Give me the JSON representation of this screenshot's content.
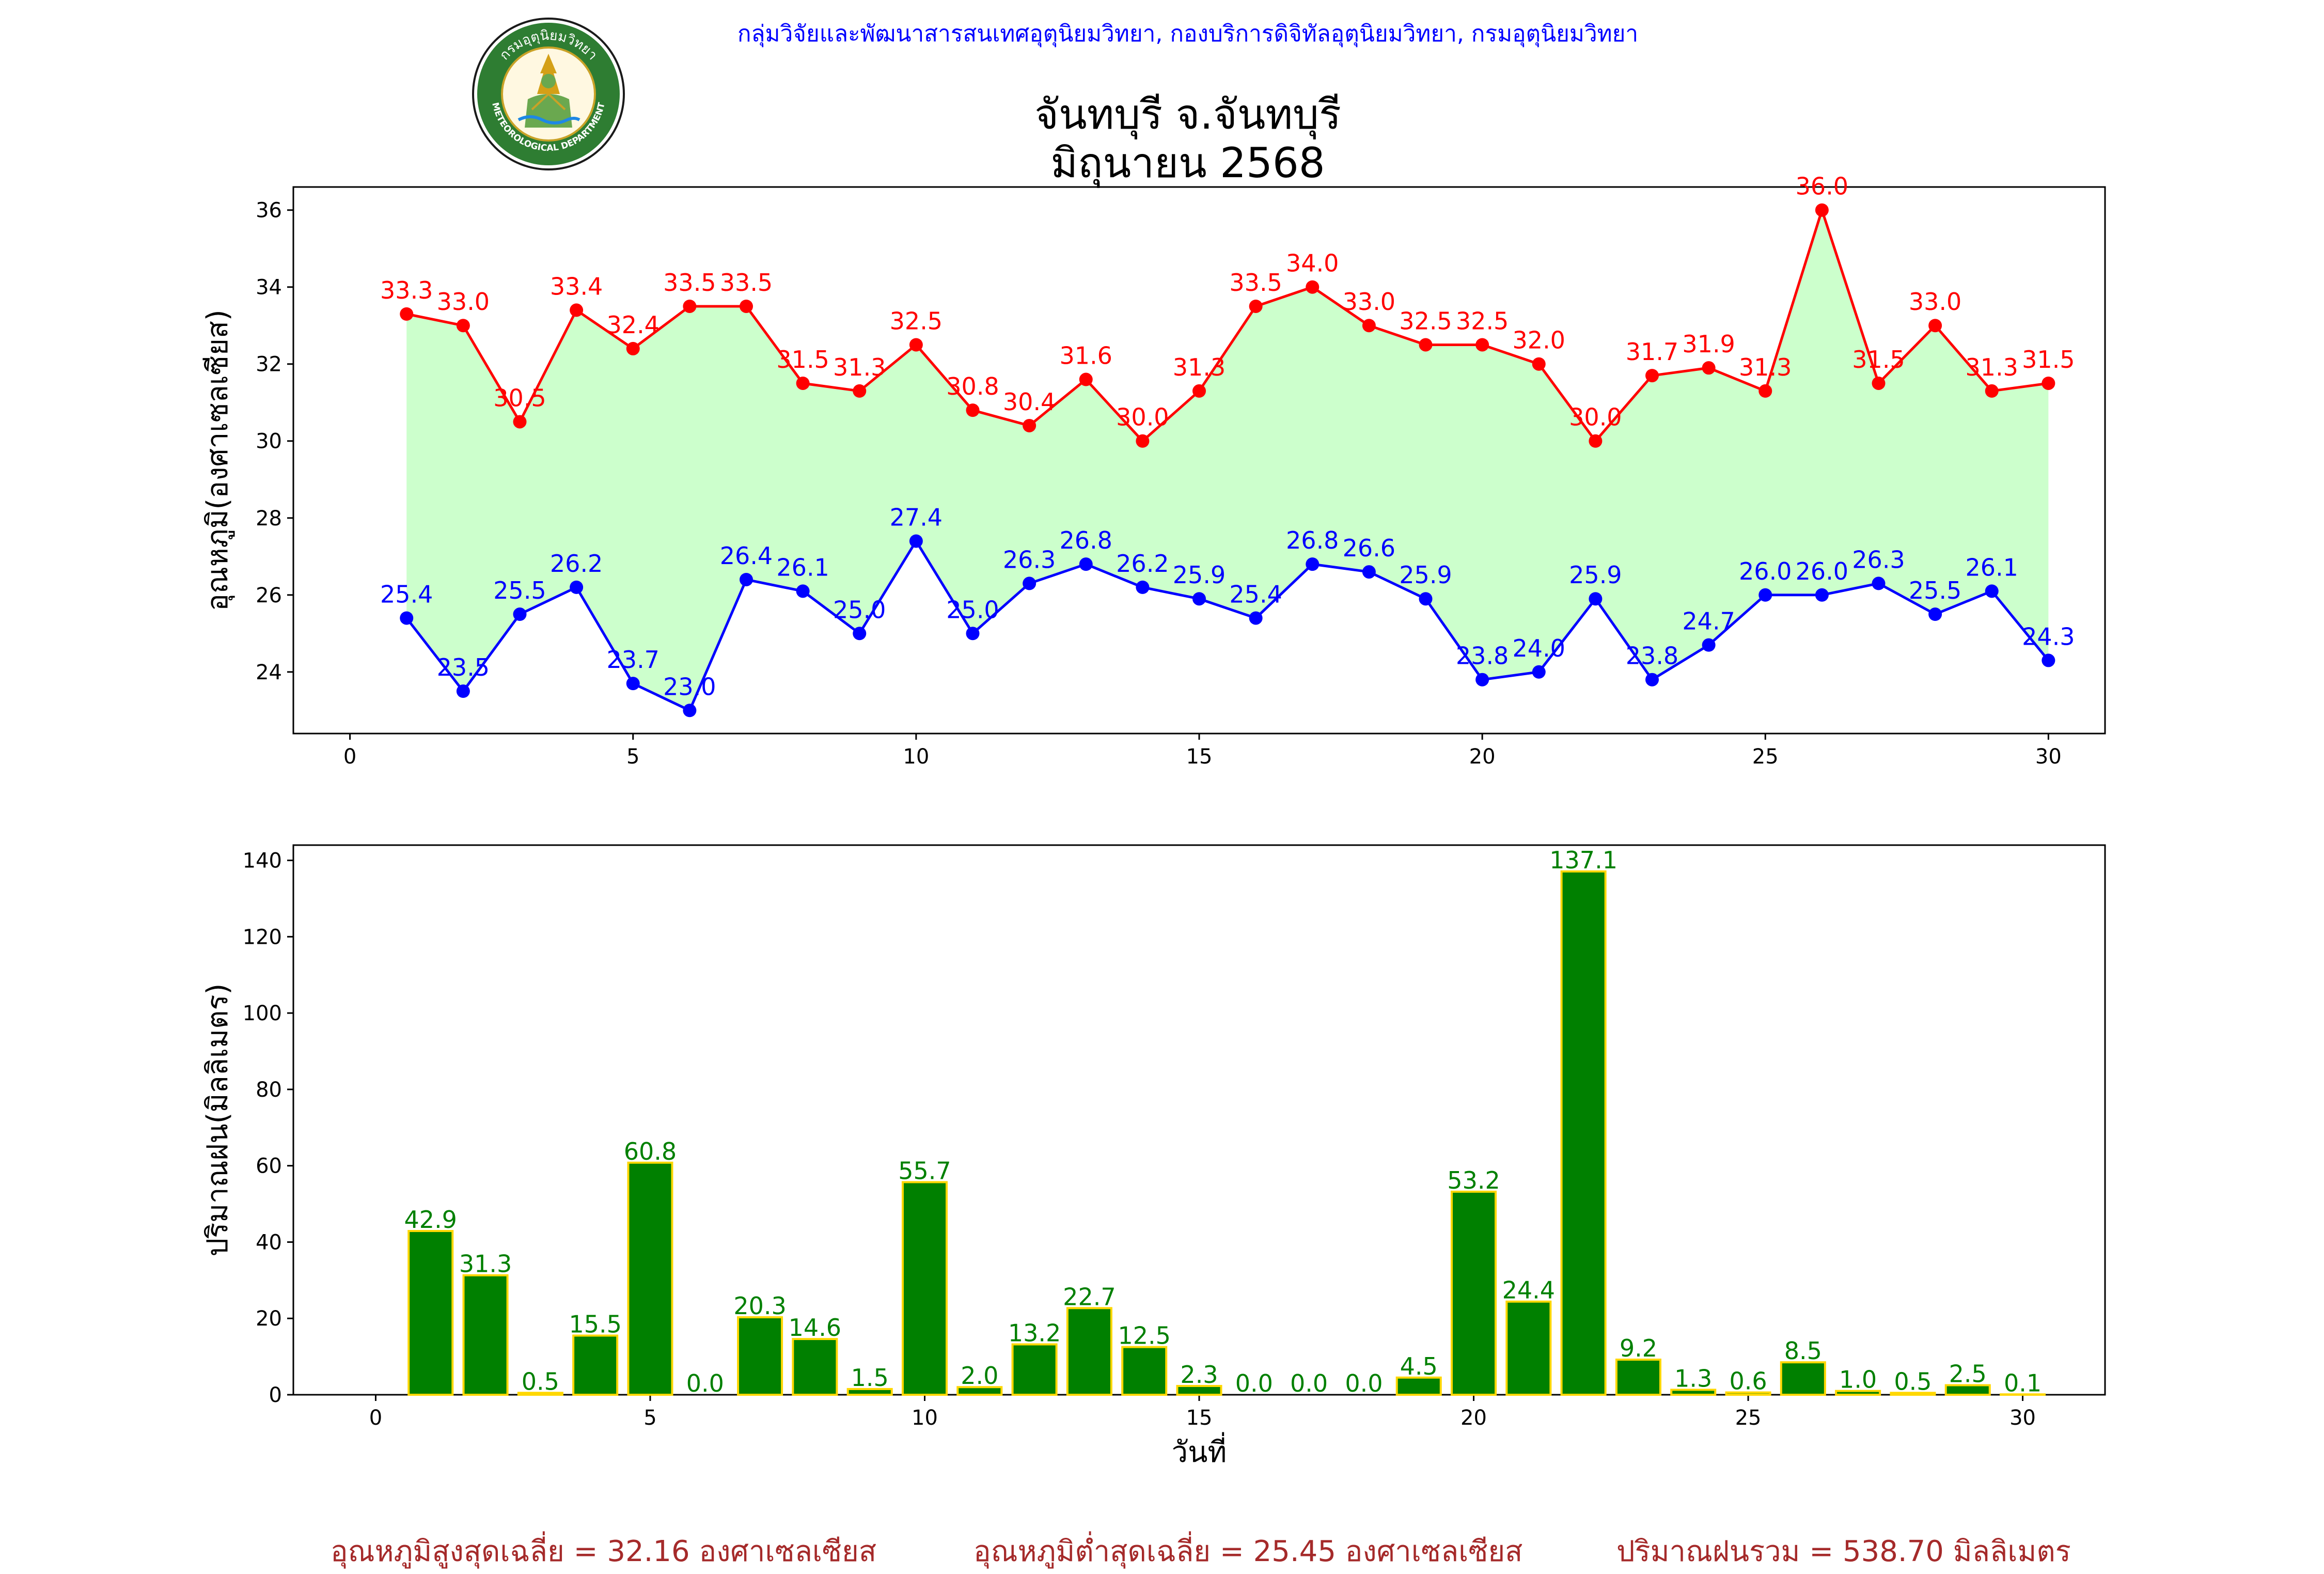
{
  "header": {
    "organization": "กลุ่มวิจัยและพัฒนาสารสนเทศอุตุนิยมวิทยา, กองบริการดิจิทัลอุตุนิยมวิทยา, กรมอุตุนิยมวิทยา",
    "logo": {
      "top_text": "กรมอุตุนิยมวิทยา",
      "bottom_text": "METEOROLOGICAL DEPARTMENT"
    }
  },
  "title": {
    "line1": "จันทบุรี จ.จันทบุรี",
    "line2": "มิถุนายน 2568"
  },
  "summary": {
    "avg_max": "อุณหภูมิสูงสุดเฉลี่ย = 32.16 องศาเซลเซียส",
    "avg_min": "อุณหภูมิต่ำสุดเฉลี่ย = 25.45 องศาเซลเซียส",
    "total_rain": "ปริมาณฝนรวม = 538.70 มิลลิเมตร"
  },
  "colors": {
    "max_temp": "#ff0000",
    "min_temp": "#0000ff",
    "temp_fill": "#ccffcc",
    "rain_bar": "#008000",
    "rain_bar_edge": "#ffd700",
    "rain_label": "#008000",
    "summary_text": "#a52a2a",
    "header_text": "#0000ff"
  },
  "chart_data": [
    {
      "type": "line",
      "ylabel": "อุณหภูมิ(องศาเซลเซียส)",
      "xlabel": "",
      "xlim": [
        -1,
        31
      ],
      "ylim": [
        22.4,
        36.6
      ],
      "xticks": [
        0,
        5,
        10,
        15,
        20,
        25,
        30
      ],
      "yticks": [
        24,
        26,
        28,
        30,
        32,
        34,
        36
      ],
      "x": [
        1,
        2,
        3,
        4,
        5,
        6,
        7,
        8,
        9,
        10,
        11,
        12,
        13,
        14,
        15,
        16,
        17,
        18,
        19,
        20,
        21,
        22,
        23,
        24,
        25,
        26,
        27,
        28,
        29,
        30
      ],
      "fill_between": true,
      "series": [
        {
          "key": "max",
          "values": [
            33.3,
            33.0,
            30.5,
            33.4,
            32.4,
            33.5,
            33.5,
            31.5,
            31.3,
            32.5,
            30.8,
            30.4,
            31.6,
            30.0,
            31.3,
            33.5,
            34.0,
            33.0,
            32.5,
            32.5,
            32.0,
            30.0,
            31.7,
            31.9,
            31.3,
            36.0,
            31.5,
            33.0,
            31.3,
            31.5
          ]
        },
        {
          "key": "min",
          "values": [
            25.4,
            23.5,
            25.5,
            26.2,
            23.7,
            23.0,
            26.4,
            26.1,
            25.0,
            27.4,
            25.0,
            26.3,
            26.8,
            26.2,
            25.9,
            25.4,
            26.8,
            26.6,
            25.9,
            23.8,
            24.0,
            25.9,
            23.8,
            24.7,
            26.0,
            26.0,
            26.3,
            25.5,
            26.1,
            24.3
          ]
        }
      ]
    },
    {
      "type": "bar",
      "ylabel": "ปริมาณฝน(มิลลิเมตร)",
      "xlabel": "วันที่",
      "xlim": [
        -1.5,
        31.5
      ],
      "ylim": [
        0,
        144
      ],
      "xticks": [
        0,
        5,
        10,
        15,
        20,
        25,
        30
      ],
      "yticks": [
        0,
        20,
        40,
        60,
        80,
        100,
        120,
        140
      ],
      "x": [
        1,
        2,
        3,
        4,
        5,
        6,
        7,
        8,
        9,
        10,
        11,
        12,
        13,
        14,
        15,
        16,
        17,
        18,
        19,
        20,
        21,
        22,
        23,
        24,
        25,
        26,
        27,
        28,
        29,
        30
      ],
      "values": [
        42.9,
        31.3,
        0.5,
        15.5,
        60.8,
        0.0,
        20.3,
        14.6,
        1.5,
        55.7,
        2.0,
        13.2,
        22.7,
        12.5,
        2.3,
        0.0,
        0.0,
        0.0,
        4.5,
        53.2,
        24.4,
        137.1,
        9.2,
        1.3,
        0.6,
        8.5,
        1.0,
        0.5,
        2.5,
        0.1
      ]
    }
  ]
}
